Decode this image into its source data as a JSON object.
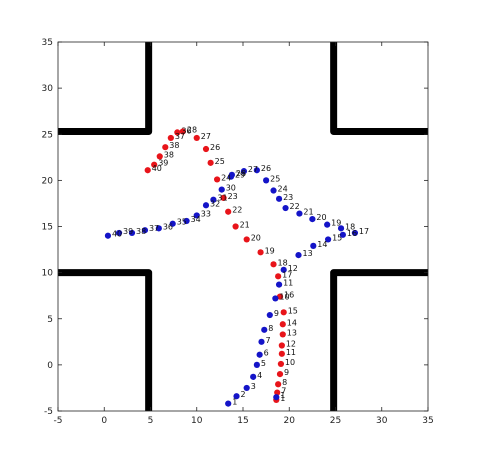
{
  "chart_data": {
    "type": "scatter",
    "xlim": [
      -5,
      35
    ],
    "ylim": [
      -5,
      35
    ],
    "x_ticks": [
      -5,
      0,
      5,
      10,
      15,
      20,
      25,
      30,
      35
    ],
    "y_ticks": [
      -5,
      0,
      5,
      10,
      15,
      20,
      25,
      30,
      35
    ],
    "grid": false,
    "colors": {
      "red": "#e8141a",
      "blue": "#1414c8",
      "walls": "#000000"
    },
    "walls": [
      [
        [
          4.8,
          35
        ],
        [
          4.8,
          25.3
        ],
        [
          -5,
          25.3
        ]
      ],
      [
        [
          24.8,
          35
        ],
        [
          24.8,
          25.3
        ],
        [
          35,
          25.3
        ]
      ],
      [
        [
          -5,
          10
        ],
        [
          4.8,
          10
        ],
        [
          4.8,
          -5
        ]
      ],
      [
        [
          35,
          10
        ],
        [
          24.8,
          10
        ],
        [
          24.8,
          -5
        ]
      ]
    ],
    "series": [
      {
        "color": "red",
        "points": [
          {
            "x": 18.6,
            "y": -3.8,
            "label": "1"
          },
          {
            "x": 18.7,
            "y": -3.0,
            "label": "7"
          },
          {
            "x": 18.8,
            "y": -2.1,
            "label": "8"
          },
          {
            "x": 19.0,
            "y": -1.0,
            "label": "9"
          },
          {
            "x": 19.1,
            "y": 0.1,
            "label": "10"
          },
          {
            "x": 19.2,
            "y": 1.2,
            "label": "11"
          },
          {
            "x": 19.2,
            "y": 2.1,
            "label": "12"
          },
          {
            "x": 19.3,
            "y": 3.3,
            "label": "13"
          },
          {
            "x": 19.3,
            "y": 4.4,
            "label": "14"
          },
          {
            "x": 19.4,
            "y": 5.7,
            "label": "15"
          },
          {
            "x": 19.0,
            "y": 7.4,
            "label": "16"
          },
          {
            "x": 18.8,
            "y": 9.6,
            "label": "17"
          },
          {
            "x": 18.3,
            "y": 10.9,
            "label": "18"
          },
          {
            "x": 16.9,
            "y": 12.2,
            "label": "19"
          },
          {
            "x": 15.4,
            "y": 13.6,
            "label": "20"
          },
          {
            "x": 14.2,
            "y": 15.0,
            "label": "21"
          },
          {
            "x": 13.4,
            "y": 16.6,
            "label": "22"
          },
          {
            "x": 12.9,
            "y": 18.1,
            "label": "23"
          },
          {
            "x": 12.2,
            "y": 20.1,
            "label": "24"
          },
          {
            "x": 11.5,
            "y": 21.9,
            "label": "25"
          },
          {
            "x": 11.0,
            "y": 23.4,
            "label": "26"
          },
          {
            "x": 10.0,
            "y": 24.6,
            "label": "27"
          },
          {
            "x": 8.5,
            "y": 25.3,
            "label": "28"
          },
          {
            "x": 7.9,
            "y": 25.2,
            "label": "36"
          },
          {
            "x": 7.2,
            "y": 24.6,
            "label": "37"
          },
          {
            "x": 6.6,
            "y": 23.6,
            "label": "38"
          },
          {
            "x": 6.0,
            "y": 22.6,
            "label": "38"
          },
          {
            "x": 5.4,
            "y": 21.7,
            "label": "39"
          },
          {
            "x": 4.7,
            "y": 21.1,
            "label": "40"
          }
        ]
      },
      {
        "color": "blue",
        "points": [
          {
            "x": 18.6,
            "y": -3.5,
            "label": "1"
          },
          {
            "x": 13.4,
            "y": -4.2,
            "label": "1"
          },
          {
            "x": 14.3,
            "y": -3.4,
            "label": "2"
          },
          {
            "x": 15.4,
            "y": -2.5,
            "label": "3"
          },
          {
            "x": 16.1,
            "y": -1.3,
            "label": "4"
          },
          {
            "x": 16.5,
            "y": 0.0,
            "label": "5"
          },
          {
            "x": 16.8,
            "y": 1.1,
            "label": "6"
          },
          {
            "x": 17.0,
            "y": 2.5,
            "label": "7"
          },
          {
            "x": 17.3,
            "y": 3.8,
            "label": "8"
          },
          {
            "x": 17.9,
            "y": 5.4,
            "label": "9"
          },
          {
            "x": 18.5,
            "y": 7.2,
            "label": "10"
          },
          {
            "x": 18.9,
            "y": 8.7,
            "label": "11"
          },
          {
            "x": 19.4,
            "y": 10.3,
            "label": "12"
          },
          {
            "x": 21.0,
            "y": 11.9,
            "label": "13"
          },
          {
            "x": 22.6,
            "y": 12.9,
            "label": "14"
          },
          {
            "x": 24.2,
            "y": 13.6,
            "label": "15"
          },
          {
            "x": 25.8,
            "y": 14.1,
            "label": "16"
          },
          {
            "x": 27.1,
            "y": 14.3,
            "label": "17"
          },
          {
            "x": 25.6,
            "y": 14.8,
            "label": "18"
          },
          {
            "x": 24.1,
            "y": 15.2,
            "label": "19"
          },
          {
            "x": 22.5,
            "y": 15.8,
            "label": "20"
          },
          {
            "x": 21.1,
            "y": 16.4,
            "label": "21"
          },
          {
            "x": 19.6,
            "y": 17.0,
            "label": "22"
          },
          {
            "x": 18.9,
            "y": 18.0,
            "label": "23"
          },
          {
            "x": 18.3,
            "y": 18.9,
            "label": "24"
          },
          {
            "x": 17.5,
            "y": 20.0,
            "label": "25"
          },
          {
            "x": 16.5,
            "y": 21.1,
            "label": "26"
          },
          {
            "x": 15.1,
            "y": 21.0,
            "label": "27"
          },
          {
            "x": 13.8,
            "y": 20.6,
            "label": "28"
          },
          {
            "x": 13.7,
            "y": 20.4,
            "label": "29"
          },
          {
            "x": 12.7,
            "y": 19.0,
            "label": "30"
          },
          {
            "x": 11.8,
            "y": 17.9,
            "label": "31"
          },
          {
            "x": 11.0,
            "y": 17.3,
            "label": "32"
          },
          {
            "x": 10.0,
            "y": 16.2,
            "label": "33"
          },
          {
            "x": 8.9,
            "y": 15.6,
            "label": "34"
          },
          {
            "x": 7.4,
            "y": 15.3,
            "label": "35"
          },
          {
            "x": 5.9,
            "y": 14.8,
            "label": "36"
          },
          {
            "x": 4.4,
            "y": 14.6,
            "label": "37"
          },
          {
            "x": 3.0,
            "y": 14.3,
            "label": "38"
          },
          {
            "x": 1.6,
            "y": 14.3,
            "label": "39"
          },
          {
            "x": 0.4,
            "y": 14.0,
            "label": "40"
          }
        ]
      }
    ]
  }
}
